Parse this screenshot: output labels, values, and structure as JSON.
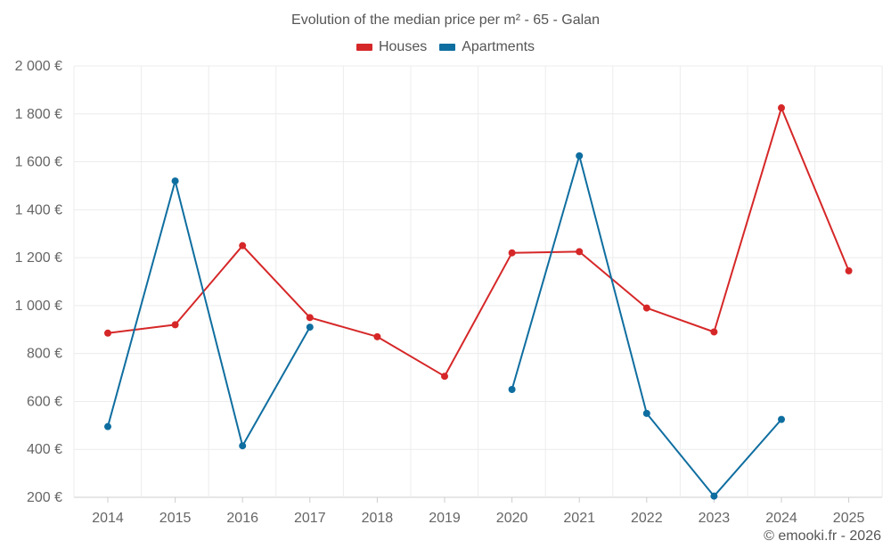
{
  "chart_data": {
    "type": "line",
    "title": "Evolution of the median price per m² - 65 - Galan",
    "xlabel": "",
    "ylabel": "",
    "categories": [
      "2014",
      "2015",
      "2016",
      "2017",
      "2018",
      "2019",
      "2020",
      "2021",
      "2022",
      "2023",
      "2024",
      "2025"
    ],
    "y_ticks": [
      "200 €",
      "400 €",
      "600 €",
      "800 €",
      "1 000 €",
      "1 200 €",
      "1 400 €",
      "1 600 €",
      "1 800 €",
      "2 000 €"
    ],
    "ylim": [
      200,
      2000
    ],
    "grid": true,
    "legend_position": "top-center",
    "series": [
      {
        "name": "Houses",
        "color": "#d62728",
        "values": [
          885,
          920,
          1250,
          950,
          870,
          705,
          1220,
          1225,
          990,
          890,
          1825,
          1145
        ]
      },
      {
        "name": "Apartments",
        "color": "#0f6ea0",
        "values": [
          495,
          1520,
          415,
          910,
          null,
          null,
          650,
          1625,
          550,
          205,
          525,
          null
        ]
      }
    ]
  },
  "credit": "© emooki.fr - 2026"
}
